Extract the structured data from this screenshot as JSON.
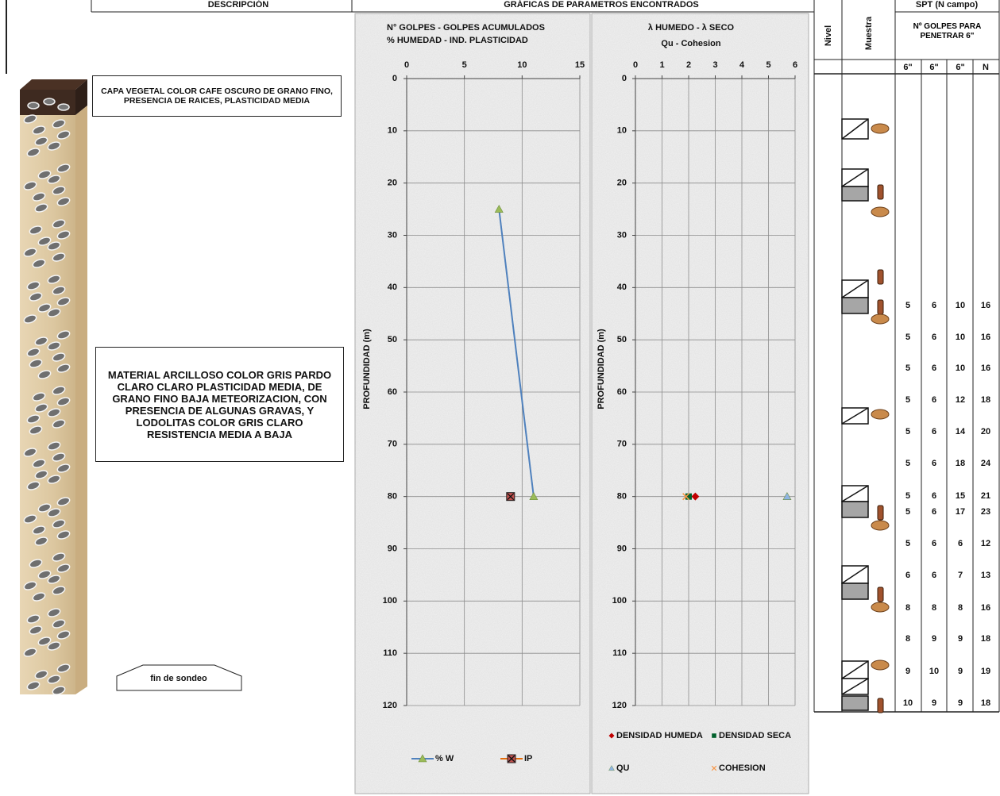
{
  "header": {
    "description": "DESCRIPCIÓN",
    "graphs": "GRÁFICAS DE PARAMETROS ENCONTRADOS"
  },
  "strata": [
    {
      "text": "CAPA VEGETAL COLOR CAFE OSCURO DE GRANO FINO, PRESENCIA DE RAICES, PLASTICIDAD MEDIA"
    },
    {
      "text": "MATERIAL ARCILLOSO COLOR GRIS PARDO CLARO CLARO PLASTICIDAD MEDIA, DE GRANO FINO BAJA METEORIZACION, CON PRESENCIA DE ALGUNAS GRAVAS, Y LODOLITAS COLOR GRIS CLARO RESISTENCIA MEDIA A BAJA"
    }
  ],
  "end_label": "fin de sondeo",
  "chart_data": [
    {
      "type": "scatter",
      "title": "N° GOLPES  -  GOLPES ACUMULADOS",
      "subtitle": "% HUMEDAD    -   IND. PLASTICIDAD",
      "y_label": "PROFUNDIDAD (m)",
      "xlim": [
        0,
        15
      ],
      "xticks": [
        0,
        5,
        10,
        15
      ],
      "ylim": [
        120,
        0
      ],
      "yticks": [
        0,
        10,
        20,
        30,
        40,
        50,
        60,
        70,
        80,
        90,
        100,
        110,
        120
      ],
      "grid": true,
      "series": [
        {
          "name": "% W",
          "color": "#4f81bd",
          "marker": "triangle",
          "marker_color": "#9bbb59",
          "line": true,
          "x": [
            8,
            11
          ],
          "y": [
            25,
            80
          ]
        },
        {
          "name": "IP",
          "color": "#e46c0a",
          "marker": "square-x",
          "marker_color": "#c0504d",
          "line": false,
          "x": [
            9
          ],
          "y": [
            80
          ]
        }
      ]
    },
    {
      "type": "scatter",
      "title": "λ HUMEDO  - λ SECO",
      "subtitle": "Qu    -    Cohesion",
      "y_label": "PROFUNDIDAD (m)",
      "xlim": [
        0,
        6
      ],
      "xticks": [
        0,
        1,
        2,
        3,
        4,
        5,
        6
      ],
      "ylim": [
        120,
        0
      ],
      "yticks": [
        0,
        10,
        20,
        30,
        40,
        50,
        60,
        70,
        80,
        90,
        100,
        110,
        120
      ],
      "grid": true,
      "series": [
        {
          "name": "DENSIDAD HUMEDA",
          "color": "#c00000",
          "marker": "diamond",
          "marker_color": "#c00000",
          "line": false,
          "x": [
            2.25
          ],
          "y": [
            80
          ]
        },
        {
          "name": "DENSIDAD SECA",
          "color": "#00602b",
          "marker": "square",
          "marker_color": "#00602b",
          "line": false,
          "x": [
            2.0
          ],
          "y": [
            80
          ]
        },
        {
          "name": "QU",
          "color": "#8eb4e3",
          "marker": "triangle",
          "marker_color": "#8eb4e3",
          "line": false,
          "x": [
            5.7
          ],
          "y": [
            80
          ]
        },
        {
          "name": "COHESION",
          "color": "#f79646",
          "marker": "cross",
          "marker_color": "#f79646",
          "line": false,
          "x": [
            1.9
          ],
          "y": [
            80
          ]
        }
      ]
    }
  ],
  "spt_table": {
    "nivel": "Nivel",
    "muestra": "Muestra",
    "title": "SPT (N  campo)",
    "subheader": "Nº GOLPES PARA PENETRAR 6\"",
    "columns": [
      "6\"",
      "6\"",
      "6\"",
      "N"
    ],
    "rows": [
      [
        5,
        6,
        10,
        16
      ],
      [
        5,
        6,
        10,
        16
      ],
      [
        5,
        6,
        10,
        16
      ],
      [
        5,
        6,
        12,
        18
      ],
      [
        5,
        6,
        14,
        20
      ],
      [
        5,
        6,
        18,
        24
      ],
      [
        5,
        6,
        15,
        21
      ],
      [
        5,
        6,
        17,
        23
      ],
      [
        5,
        6,
        6,
        12
      ],
      [
        6,
        6,
        7,
        13
      ],
      [
        8,
        8,
        8,
        16
      ],
      [
        8,
        9,
        9,
        18
      ],
      [
        9,
        10,
        9,
        19
      ],
      [
        10,
        9,
        9,
        18
      ]
    ]
  }
}
